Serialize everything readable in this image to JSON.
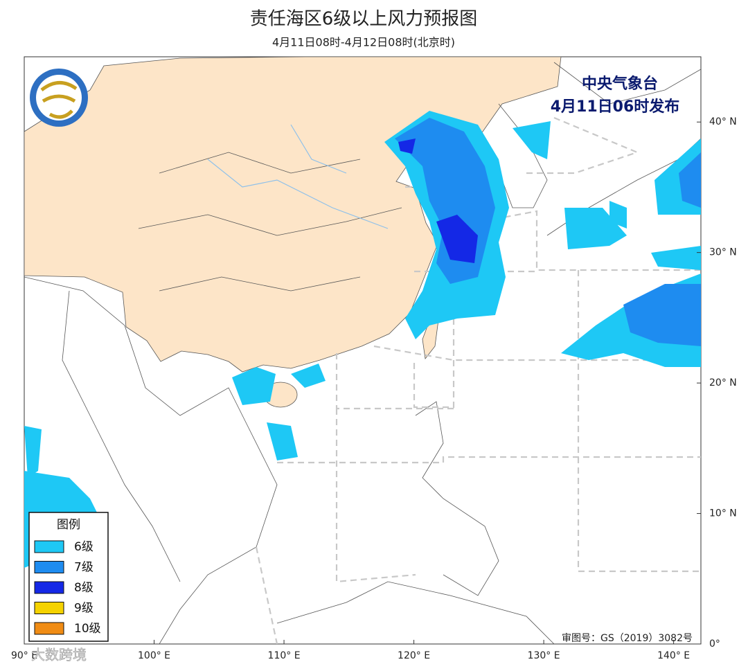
{
  "header": {
    "title": "责任海区6级以上风力预报图",
    "subtitle": "4月11日08时-4月12日08时(北京时)"
  },
  "issuer": {
    "agency": "中央气象台",
    "issued": "4月11日06时发布"
  },
  "map": {
    "lon_range": [
      90,
      142.1
    ],
    "lat_range": [
      0,
      45
    ],
    "lon_ticks": [
      {
        "value": 90,
        "label": "90° E"
      },
      {
        "value": 100,
        "label": "100° E"
      },
      {
        "value": 110,
        "label": "110° E"
      },
      {
        "value": 120,
        "label": "120° E"
      },
      {
        "value": 130,
        "label": "130° E"
      },
      {
        "value": 140,
        "label": "140° E"
      }
    ],
    "lat_ticks": [
      {
        "value": 0,
        "label": "0°"
      },
      {
        "value": 10,
        "label": "10° N"
      },
      {
        "value": 20,
        "label": "20° N"
      },
      {
        "value": 30,
        "label": "30° N"
      },
      {
        "value": 40,
        "label": "40° N"
      }
    ]
  },
  "legend": {
    "title": "图例",
    "items": [
      {
        "label": "6级",
        "color": "#1ec8f5"
      },
      {
        "label": "7级",
        "color": "#1e8cf0"
      },
      {
        "label": "8级",
        "color": "#1428e6"
      },
      {
        "label": "9级",
        "color": "#f5d200"
      },
      {
        "label": "10级",
        "color": "#f08c14"
      }
    ]
  },
  "footer": {
    "approval": "审图号：GS（2019）3082号",
    "watermark": "大数跨境"
  }
}
